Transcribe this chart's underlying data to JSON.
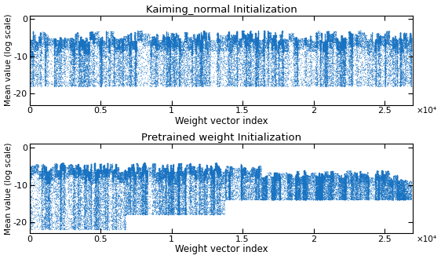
{
  "title1": "Kaiming_normal Initialization",
  "title2": "Pretrained weight Initialization",
  "xlabel": "Weight vector index",
  "ylabel": "Mean value (log scale)",
  "xlim": [
    0,
    27000
  ],
  "ylim": [
    -23,
    1
  ],
  "yticks": [
    0,
    -10,
    -20
  ],
  "xtick_vals": [
    0,
    5000,
    10000,
    15000,
    20000,
    25000
  ],
  "xtick_labels": [
    "0",
    "0.5",
    "1",
    "1.5",
    "2",
    "2.5"
  ],
  "xscale_label": "×10⁴",
  "dot_color_main": "#1772c2",
  "dot_color_light": "#7ab8e8",
  "dot_alpha": 0.5,
  "dot_size": 0.8,
  "n_layers": 200,
  "n_points_total": 27000,
  "seed1": 10,
  "seed2": 20,
  "background_color": "#ffffff"
}
